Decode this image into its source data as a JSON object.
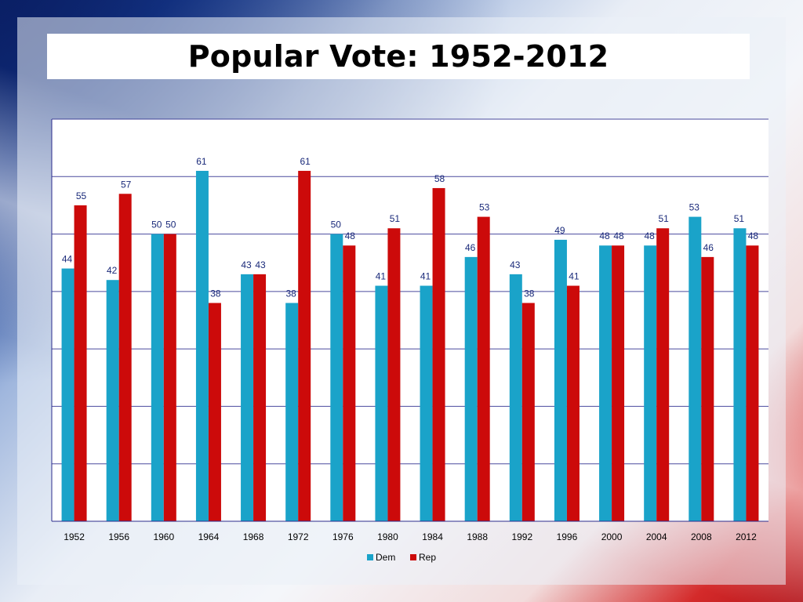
{
  "title": "Popular Vote: 1952-2012",
  "colors": {
    "dem": "#1aa3c9",
    "rep": "#cc0a0a",
    "grid": "#2b2b8c",
    "label": "#1a2a7a"
  },
  "chart_data": {
    "type": "bar",
    "categories": [
      "1952",
      "1956",
      "1960",
      "1964",
      "1968",
      "1972",
      "1976",
      "1980",
      "1984",
      "1988",
      "1992",
      "1996",
      "2000",
      "2004",
      "2008",
      "2012"
    ],
    "series": [
      {
        "name": "Dem",
        "values": [
          44,
          42,
          50,
          61,
          43,
          38,
          50,
          41,
          41,
          46,
          43,
          49,
          48,
          48,
          53,
          51
        ]
      },
      {
        "name": "Rep",
        "values": [
          55,
          57,
          50,
          38,
          43,
          61,
          48,
          51,
          58,
          53,
          38,
          41,
          48,
          51,
          46,
          48
        ]
      }
    ],
    "ylim": [
      0,
      70
    ],
    "yticks": [
      0,
      10,
      20,
      30,
      40,
      50,
      60,
      70
    ],
    "grid": true,
    "legend": "bottom",
    "xlabel": "",
    "ylabel": ""
  }
}
